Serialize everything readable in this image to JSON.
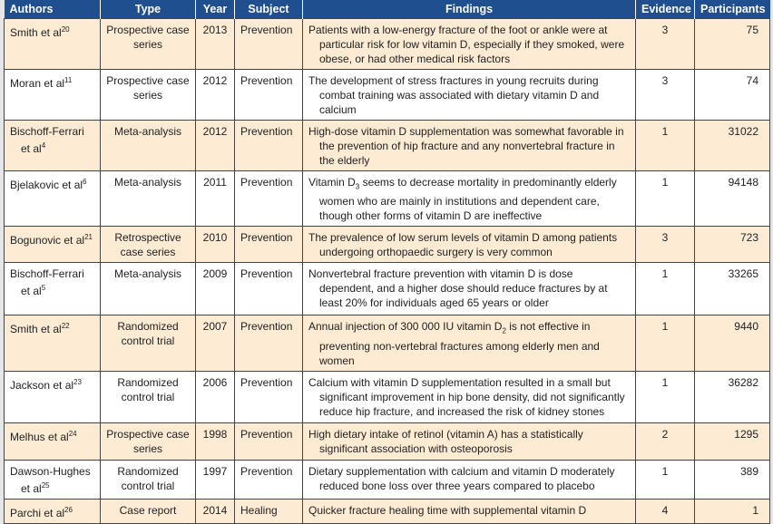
{
  "headers": [
    "Authors",
    "Type",
    "Year",
    "Subject",
    "Findings",
    "Evidence",
    "Participants"
  ],
  "rows": [
    {
      "author": "Smith et al",
      "ref": "20",
      "type": "Prospective case series",
      "year": "2013",
      "subject": "Prevention",
      "findings": "Patients with a low-energy fracture of the foot or ankle were at particular risk for low vitamin D, especially if they smoked, were obese, or had other medical risk factors",
      "evidence": "3",
      "participants": "75"
    },
    {
      "author": "Moran et al",
      "ref": "11",
      "type": "Prospective case series",
      "year": "2012",
      "subject": "Prevention",
      "findings": "The development of stress fractures in young recruits during combat training was associated with dietary vitamin D and calcium",
      "evidence": "3",
      "participants": "74"
    },
    {
      "author": "Bischoff-Ferrari et al",
      "ref": "4",
      "type": "Meta-analysis",
      "year": "2012",
      "subject": "Prevention",
      "findings": "High-dose vitamin D supplementation was somewhat favorable in the prevention of hip fracture and any nonvertebral fracture in the elderly",
      "evidence": "1",
      "participants": "31022"
    },
    {
      "author": "Bjelakovic et al",
      "ref": "6",
      "type": "Meta-analysis",
      "year": "2011",
      "subject": "Prevention",
      "findings_pre": "Vitamin D",
      "findings_sub": "3",
      "findings": " seems to decrease mortality in predominantly elderly women who are mainly in institutions and dependent care, though other forms of vitamin D are ineffective",
      "evidence": "1",
      "participants": "94148"
    },
    {
      "author": "Bogunovic et al",
      "ref": "21",
      "type": "Retrospective case series",
      "year": "2010",
      "subject": "Prevention",
      "findings": "The prevalence of low serum levels of vitamin D among patients undergoing orthopaedic surgery is very common",
      "evidence": "3",
      "participants": "723"
    },
    {
      "author": "Bischoff-Ferrari et al",
      "ref": "5",
      "type": "Meta-analysis",
      "year": "2009",
      "subject": "Prevention",
      "findings": "Nonvertebral fracture prevention with vitamin D is dose dependent, and a higher dose should reduce fractures by at least 20% for individuals aged 65 years or older",
      "evidence": "1",
      "participants": "33265"
    },
    {
      "author": "Smith et al",
      "ref": "22",
      "type": "Randomized control trial",
      "year": "2007",
      "subject": "Prevention",
      "findings_pre": "Annual injection of 300 000 IU vitamin D",
      "findings_sub": "2",
      "findings": " is not effective in preventing non-vertebral fractures among elderly men and women",
      "evidence": "1",
      "participants": "9440"
    },
    {
      "author": "Jackson et al",
      "ref": "23",
      "type": "Randomized control trial",
      "year": "2006",
      "subject": "Prevention",
      "findings": "Calcium with vitamin D supplementation resulted in a small but significant improvement in hip bone density, did not significantly reduce hip fracture, and increased the risk of kidney stones",
      "evidence": "1",
      "participants": "36282"
    },
    {
      "author": "Melhus et al",
      "ref": "24",
      "type": "Prospective case series",
      "year": "1998",
      "subject": "Prevention",
      "findings": "High dietary intake of retinol (vitamin A) has a statistically significant association with osteoporosis",
      "evidence": "2",
      "participants": "1295"
    },
    {
      "author": "Dawson-Hughes et al",
      "ref": "25",
      "type": "Randomized control trial",
      "year": "1997",
      "subject": "Prevention",
      "findings": "Dietary supplementation with calcium and vitamin D moderately reduced bone loss over three years compared to placebo",
      "evidence": "1",
      "participants": "389"
    },
    {
      "author": "Parchi et al",
      "ref": "26",
      "type": "Case report",
      "year": "2014",
      "subject": "Healing",
      "findings": "Quicker fracture healing time with supplemental vitamin D",
      "evidence": "4",
      "participants": "1"
    }
  ],
  "colors": {
    "header_bg": "#1f4f8f",
    "odd_row": "#fdebd4",
    "even_row": "#ffffff"
  }
}
